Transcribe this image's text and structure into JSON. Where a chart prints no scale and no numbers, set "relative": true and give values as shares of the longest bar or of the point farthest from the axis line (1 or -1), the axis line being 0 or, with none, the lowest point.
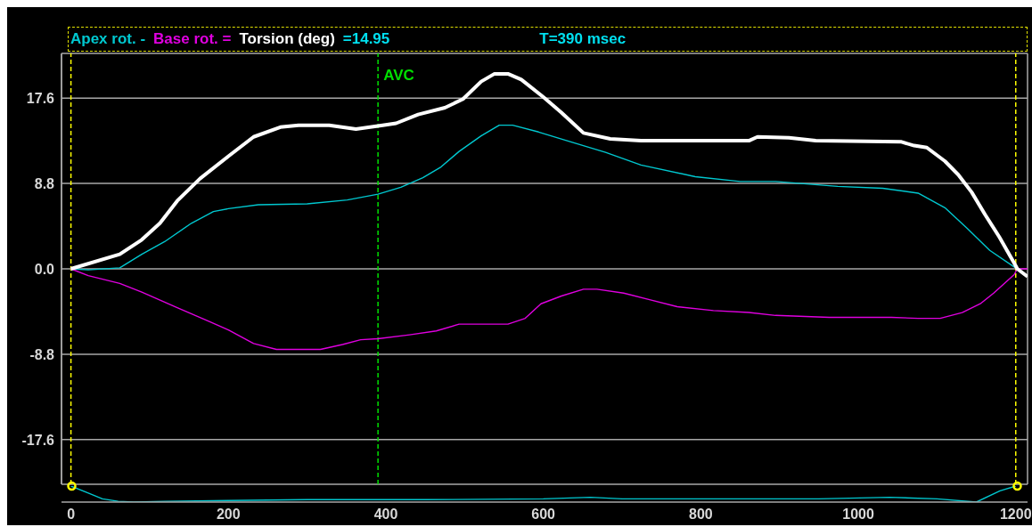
{
  "chart_data": [
    {
      "type": "line",
      "legend": "top left",
      "grid": true,
      "tick_labels": "y",
      "annotations": [
        "=14.95",
        "T=390 msec"
      ],
      "xlim": [
        -12,
        1215
      ],
      "ylim": [
        -22.2,
        22.2
      ],
      "yticks": [
        {
          "value": -17.6,
          "label": "-17.6"
        },
        {
          "value": -8.8,
          "label": "-8.8"
        },
        {
          "value": 0,
          "label": "0.0"
        },
        8.8,
        17.6
      ],
      "ref_lines": [
        {
          "axis": "x",
          "value": 0,
          "color": "#ffff00",
          "line_style": "dashed"
        },
        {
          "axis": "x",
          "value": 390,
          "label": "AVC",
          "color": "#00e000",
          "line_style": "dashed"
        },
        {
          "axis": "x",
          "value": 1200,
          "color": "#ffff00",
          "line_style": "dashed"
        }
      ],
      "series": [
        {
          "name": "Apex rot. -",
          "color": "#00c8d0",
          "x": [
            0,
            22,
            62,
            90,
            119,
            153,
            181,
            200,
            238,
            300,
            351,
            390,
            419,
            447,
            470,
            493,
            521,
            544,
            561,
            594,
            634,
            679,
            724,
            793,
            850,
            895,
            974,
            1031,
            1076,
            1110,
            1138,
            1167,
            1198,
            1202
          ],
          "values": [
            0,
            -0.1,
            0.1,
            1.5,
            2.8,
            4.7,
            5.9,
            6.2,
            6.6,
            6.7,
            7.1,
            7.7,
            8.4,
            9.4,
            10.5,
            12.1,
            13.7,
            14.8,
            14.8,
            14.1,
            13.1,
            12.0,
            10.7,
            9.5,
            9.0,
            9.0,
            8.5,
            8.3,
            7.8,
            6.3,
            4.2,
            1.9,
            0.2,
            0
          ]
        },
        {
          "name": "Base rot. =",
          "color": "#e000e0",
          "x": [
            0,
            22,
            62,
            90,
            135,
            175,
            200,
            232,
            261,
            317,
            345,
            368,
            390,
            430,
            464,
            493,
            521,
            555,
            577,
            597,
            623,
            651,
            668,
            702,
            736,
            770,
            816,
            861,
            895,
            963,
            1042,
            1076,
            1104,
            1132,
            1155,
            1172,
            1198,
            1202,
            1215
          ],
          "values": [
            0,
            -0.7,
            -1.5,
            -2.4,
            -4.0,
            -5.4,
            -6.3,
            -7.7,
            -8.3,
            -8.3,
            -7.8,
            -7.3,
            -7.2,
            -6.8,
            -6.4,
            -5.7,
            -5.7,
            -5.7,
            -5.1,
            -3.6,
            -2.8,
            -2.1,
            -2.1,
            -2.5,
            -3.2,
            -3.9,
            -4.3,
            -4.5,
            -4.8,
            -5.0,
            -5.0,
            -5.1,
            -5.1,
            -4.5,
            -3.6,
            -2.5,
            -0.6,
            0,
            0
          ]
        },
        {
          "name": "Torsion (deg)",
          "color": "#ffffff",
          "x": [
            0,
            62,
            90,
            113,
            135,
            164,
            200,
            232,
            266,
            289,
            328,
            362,
            380,
            396,
            413,
            441,
            475,
            498,
            521,
            538,
            555,
            572,
            600,
            623,
            651,
            685,
            724,
            861,
            872,
            912,
            946,
            1054,
            1071,
            1087,
            1110,
            1127,
            1144,
            1161,
            1179,
            1198,
            1202,
            1215
          ],
          "values": [
            0,
            1.5,
            3.0,
            4.7,
            7.0,
            9.3,
            11.6,
            13.6,
            14.6,
            14.8,
            14.8,
            14.4,
            14.6,
            14.8,
            15.0,
            15.9,
            16.6,
            17.5,
            19.3,
            20.1,
            20.1,
            19.5,
            17.7,
            16.1,
            14.0,
            13.4,
            13.2,
            13.2,
            13.6,
            13.5,
            13.2,
            13.1,
            12.7,
            12.5,
            11.1,
            9.7,
            7.9,
            5.6,
            3.3,
            0.6,
            0,
            -0.8
          ]
        }
      ]
    },
    {
      "type": "line",
      "relative": true,
      "tick_labels": "x",
      "xlim": [
        -12,
        1215
      ],
      "xticks": [
        0,
        200,
        400,
        600,
        800,
        1000,
        1200
      ],
      "series": [
        {
          "color": "#00c8d0",
          "x": [
            0,
            20,
            40,
            60,
            80,
            120,
            200,
            300,
            450,
            600,
            660,
            700,
            950,
            1040,
            1100,
            1150,
            1180,
            1200
          ],
          "values": [
            1,
            0.6,
            0.2,
            0.05,
            0,
            0.05,
            0.1,
            0.15,
            0.15,
            0.2,
            0.3,
            0.2,
            0.2,
            0.3,
            0.2,
            0,
            0.7,
            1
          ]
        }
      ]
    }
  ]
}
